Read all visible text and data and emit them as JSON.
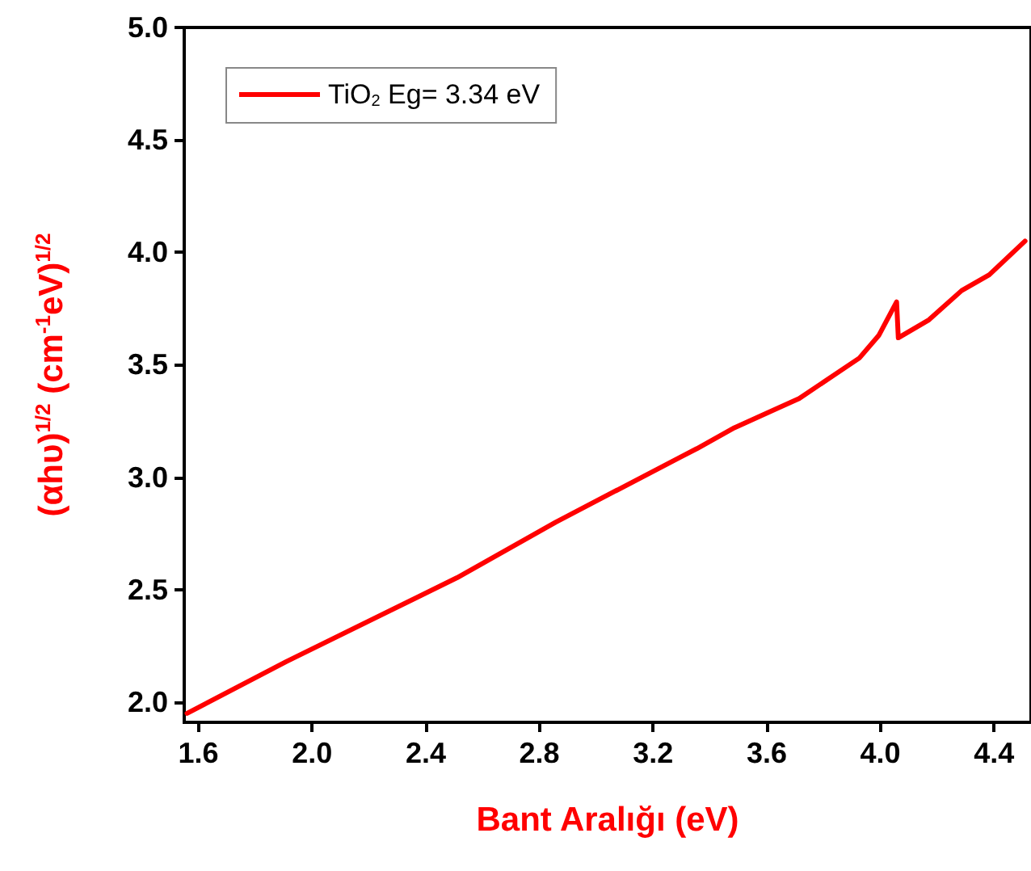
{
  "chart_data": {
    "type": "line",
    "xlabel": "Bant Aralığı (eV)",
    "ylabel": "(αhυ)$^{1/2}$ (cm$^{-1}$eV)$^{1/2}$",
    "xlim": [
      1.55,
      4.53
    ],
    "xticks": [
      1.6,
      {
        "value": 2,
        "label": "2.0"
      },
      2.4,
      2.8,
      3.2,
      3.6,
      {
        "value": 4,
        "label": "4.0"
      },
      4.4
    ],
    "ylim": [
      1.91,
      5.0
    ],
    "yticks": [
      {
        "value": 2,
        "label": "2.0"
      },
      2.5,
      {
        "value": 3,
        "label": "3.0"
      },
      3.5,
      {
        "value": 4,
        "label": "4.0"
      },
      4.5,
      {
        "value": 5,
        "label": "5.0"
      }
    ],
    "grid": false,
    "legend": "top left",
    "marker": "none",
    "line_style": "solid",
    "series": [
      {
        "name": "TiO$_{2}$ Eg= 3.34 eV",
        "color": "#ff0000",
        "x": [
          1.56,
          1.909,
          2.51,
          2.857,
          3.297,
          3.354,
          3.486,
          3.714,
          3.926,
          3.994,
          4.057,
          4.063,
          4.171,
          4.286,
          4.383,
          4.509
        ],
        "values": [
          1.95,
          2.18,
          2.553,
          2.8,
          3.09,
          3.127,
          3.22,
          3.35,
          3.53,
          3.63,
          3.78,
          3.62,
          3.7,
          3.83,
          3.9,
          4.05
        ]
      }
    ]
  }
}
